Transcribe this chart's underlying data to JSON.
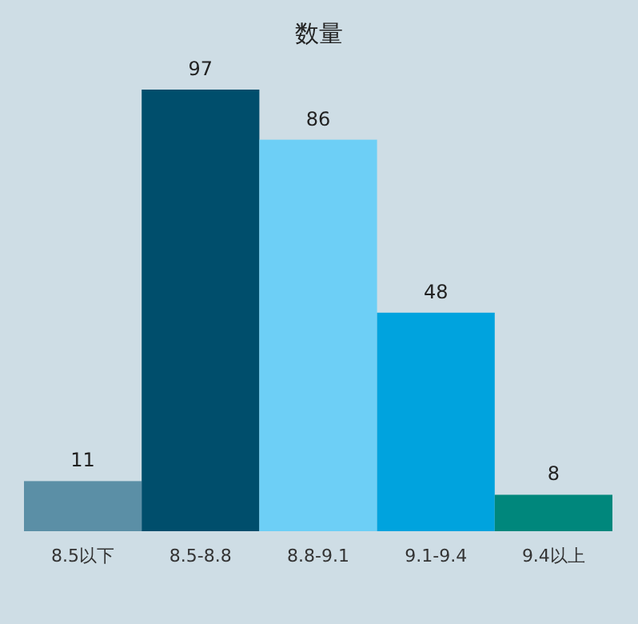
{
  "chart_data": {
    "type": "bar",
    "title": "数量",
    "categories": [
      "8.5以下",
      "8.5-8.8",
      "8.8-9.1",
      "9.1-9.4",
      "9.4以上"
    ],
    "values": [
      11,
      97,
      86,
      48,
      8
    ],
    "colors": [
      "#5b8fa6",
      "#004e6c",
      "#6dcff6",
      "#00a3de",
      "#00877c"
    ],
    "data_labels": true
  }
}
